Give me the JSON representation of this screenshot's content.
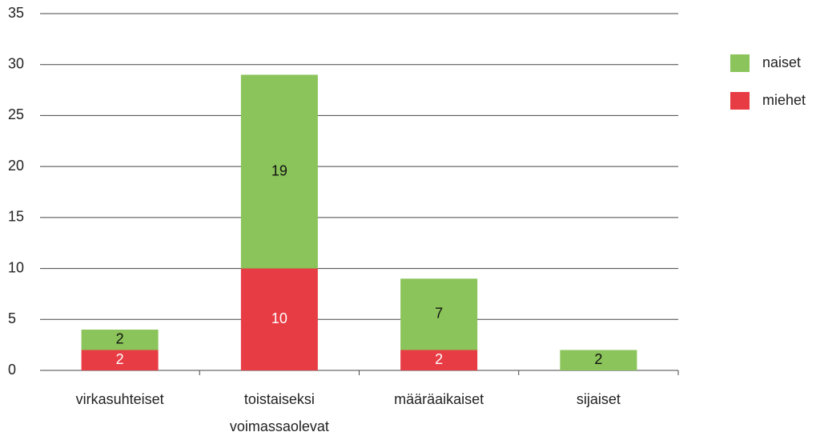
{
  "chart_data": {
    "type": "stacked-bar",
    "categories": [
      "virkasuhteiset",
      "toistaiseksi voimassaolevat",
      "määräaikaiset",
      "sijaiset"
    ],
    "series": [
      {
        "name": "miehet",
        "color": "#e83c44",
        "label_color": "#ffffff",
        "values": [
          2,
          10,
          2,
          0
        ]
      },
      {
        "name": "naiset",
        "color": "#8bc45a",
        "label_color": "#111111",
        "values": [
          2,
          19,
          7,
          2
        ]
      }
    ],
    "ylim": [
      0,
      35
    ],
    "yticks": [
      0,
      5,
      10,
      15,
      20,
      25,
      30,
      35
    ],
    "grid": true,
    "legend": "right"
  }
}
